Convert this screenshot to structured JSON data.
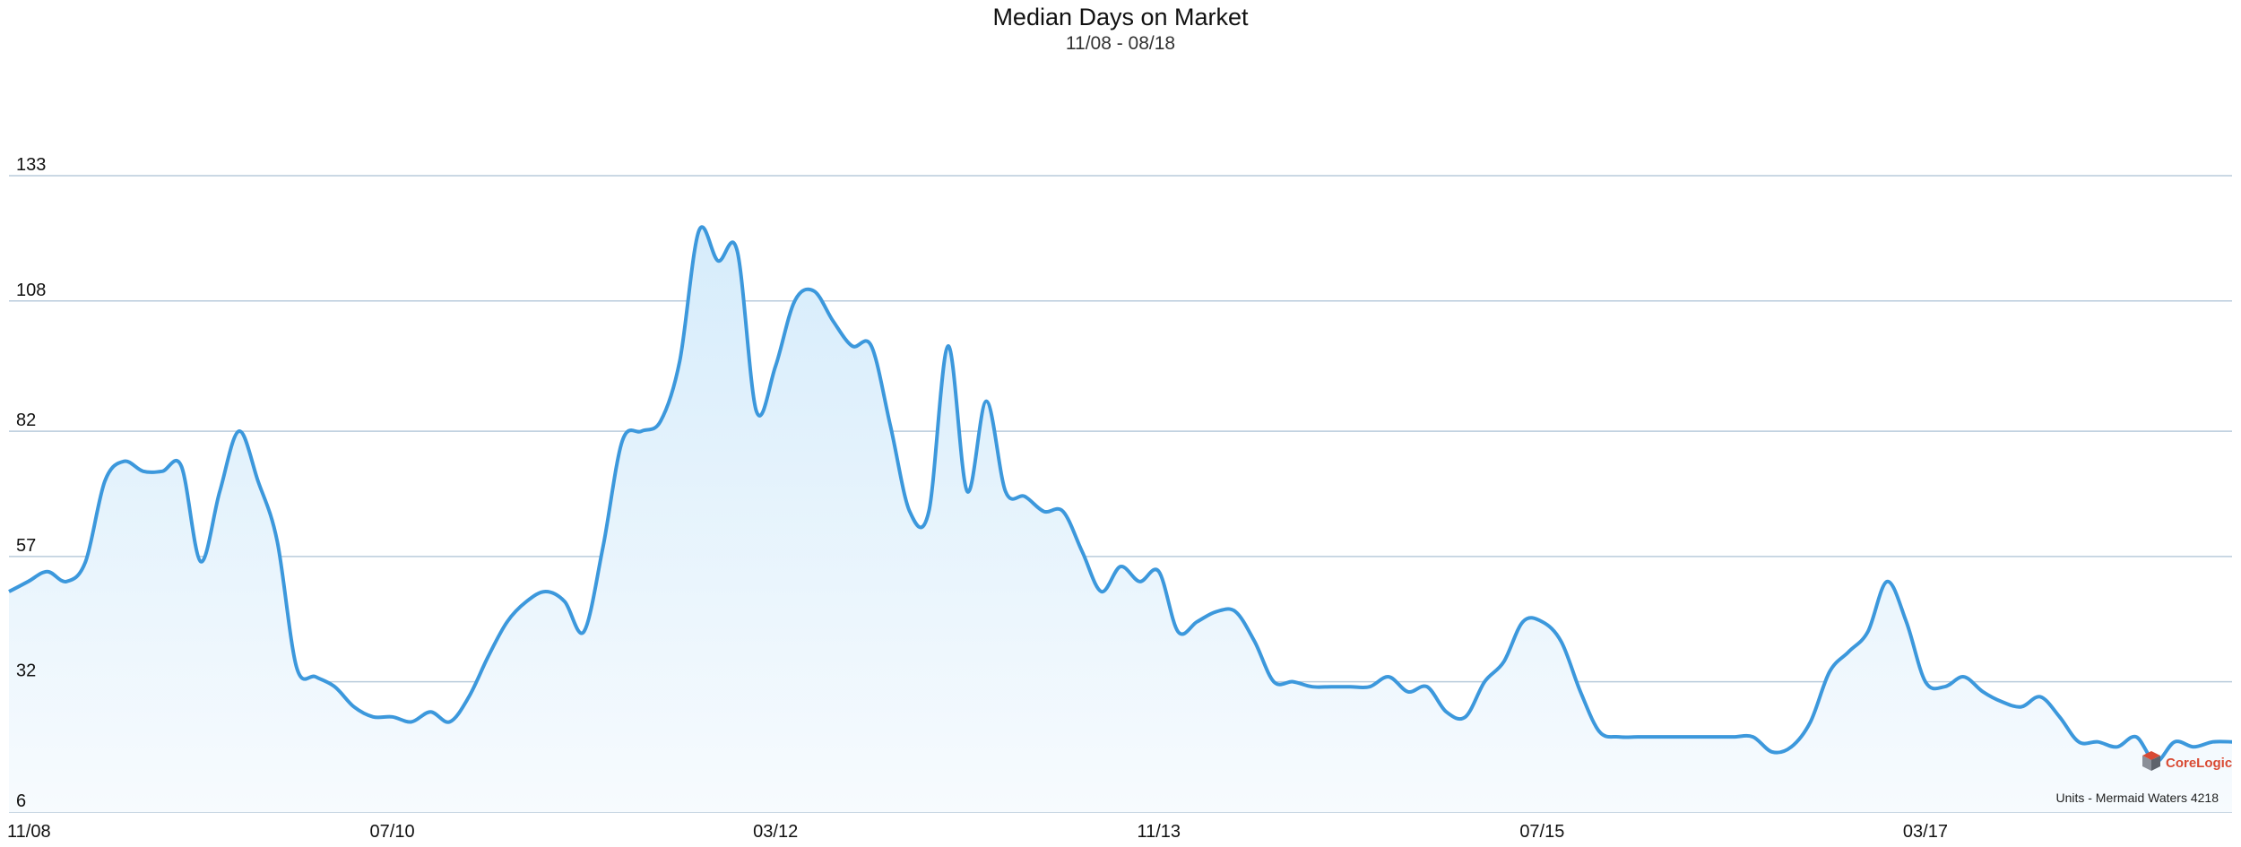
{
  "colors": {
    "line": "#3c98dc",
    "fill_top": "#d6ecfb",
    "fill_bottom": "#f7fbfe",
    "grid": "#b9cbdc",
    "text": "#111111"
  },
  "watermark": {
    "brand": "CoreLogic"
  },
  "chart_data": {
    "type": "area",
    "title": "Median Days on Market",
    "subtitle": "11/08 - 08/18",
    "footnote": "Units - Mermaid Waters 4218",
    "y_ticks": [
      6,
      32,
      57,
      82,
      108,
      133
    ],
    "ylim": [
      6,
      133
    ],
    "x_ticks": [
      "11/08",
      "07/10",
      "03/12",
      "11/13",
      "07/15",
      "03/17"
    ],
    "x_tick_index": [
      0,
      20,
      40,
      60,
      80,
      100
    ],
    "grid": true,
    "series": [
      {
        "values": [
          50,
          52,
          54,
          52,
          56,
          72,
          76,
          74,
          74,
          75,
          56,
          70,
          82,
          72,
          60,
          35,
          33,
          31,
          27,
          25,
          25,
          24,
          26,
          24,
          29,
          37,
          44,
          48,
          50,
          48,
          42,
          59,
          80,
          82,
          84,
          96,
          122,
          116,
          118,
          86,
          95,
          108,
          110,
          104,
          99,
          99,
          83,
          66,
          66,
          99,
          70,
          88,
          70,
          69,
          66,
          66,
          58,
          50,
          55,
          52,
          54,
          42,
          44,
          46,
          46,
          40,
          32,
          32,
          31,
          31,
          31,
          31,
          33,
          30,
          31,
          26,
          25,
          32,
          36,
          44,
          44,
          40,
          30,
          22,
          21,
          21,
          21,
          21,
          21,
          21,
          21,
          21,
          18,
          19,
          24,
          34,
          38,
          42,
          52,
          44,
          32,
          31,
          33,
          30,
          28,
          27,
          29,
          25,
          20,
          20,
          19,
          21,
          16,
          20,
          19,
          20,
          20
        ]
      }
    ]
  }
}
